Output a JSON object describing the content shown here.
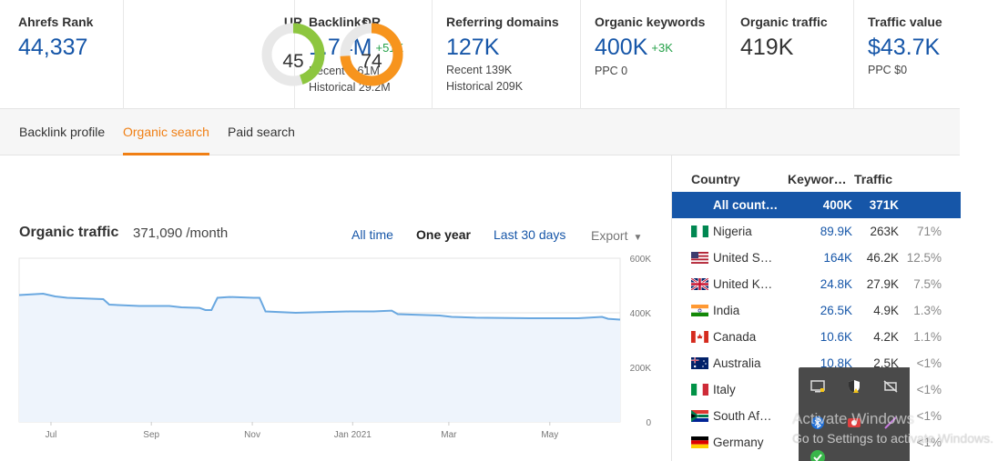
{
  "metrics": {
    "ahrefs_rank": {
      "label": "Ahrefs Rank",
      "value": "44,337"
    },
    "ur": {
      "label": "UR",
      "value": "45",
      "score": 45,
      "color": "#8dc63f"
    },
    "dr": {
      "label": "DR",
      "value": "74",
      "score": 74,
      "color": "#f7941d"
    },
    "backlinks": {
      "label": "Backlinks",
      "value": "1.74M",
      "delta": "+51K",
      "recent": "Recent 2.61M",
      "historical": "Historical 29.2M"
    },
    "referring_domains": {
      "label": "Referring domains",
      "value": "127K",
      "recent": "Recent 139K",
      "historical": "Historical 209K"
    },
    "organic_keywords": {
      "label": "Organic keywords",
      "value": "400K",
      "delta": "+3K",
      "ppc": "PPC 0"
    },
    "organic_traffic": {
      "label": "Organic traffic",
      "value": "419K"
    },
    "traffic_value": {
      "label": "Traffic value",
      "value": "$43.7K",
      "ppc": "PPC $0"
    }
  },
  "tabs": [
    {
      "label": "Backlink profile",
      "active": false
    },
    {
      "label": "Organic search",
      "active": true
    },
    {
      "label": "Paid search",
      "active": false
    }
  ],
  "chart_panel": {
    "title": "Organic traffic",
    "subtitle": "371,090 /month",
    "ranges": [
      "All time",
      "One year",
      "Last 30 days"
    ],
    "selected_range": "One year",
    "export_label": "Export"
  },
  "chart_data": {
    "type": "area",
    "title": "Organic traffic",
    "xlabel": "",
    "ylabel": "",
    "x_ticks": [
      "Jul",
      "Sep",
      "Nov",
      "Jan 2021",
      "Mar",
      "May"
    ],
    "y_ticks": [
      "600K",
      "400K",
      "200K",
      "0"
    ],
    "ylim": [
      0,
      600000
    ],
    "grid": true,
    "series": [
      {
        "values": [
          [
            0,
            465000
          ],
          [
            0.04,
            470000
          ],
          [
            0.06,
            460000
          ],
          [
            0.08,
            455000
          ],
          [
            0.14,
            450000
          ],
          [
            0.15,
            430000
          ],
          [
            0.2,
            425000
          ],
          [
            0.25,
            425000
          ],
          [
            0.27,
            420000
          ],
          [
            0.3,
            418000
          ],
          [
            0.32,
            410000
          ],
          [
            0.31,
            410000
          ],
          [
            0.33,
            455000
          ],
          [
            0.35,
            458000
          ],
          [
            0.39,
            455000
          ],
          [
            0.4,
            455000
          ],
          [
            0.41,
            405000
          ],
          [
            0.46,
            400000
          ],
          [
            0.55,
            405000
          ],
          [
            0.59,
            405000
          ],
          [
            0.62,
            408000
          ],
          [
            0.63,
            395000
          ],
          [
            0.7,
            390000
          ],
          [
            0.72,
            385000
          ],
          [
            0.76,
            382000
          ],
          [
            0.85,
            380000
          ],
          [
            0.93,
            380000
          ],
          [
            0.97,
            385000
          ],
          [
            0.98,
            378000
          ],
          [
            1.0,
            375000
          ]
        ],
        "color": "#6aa8e0"
      }
    ]
  },
  "country_table": {
    "headers": {
      "country": "Country",
      "keywords": "Keywor…",
      "traffic": "Traffic"
    },
    "rows": [
      {
        "name": "All count…",
        "keywords": "400K",
        "traffic": "371K",
        "pct": "",
        "flag": "none",
        "selected": true
      },
      {
        "name": "Nigeria",
        "keywords": "89.9K",
        "traffic": "263K",
        "pct": "71%",
        "flag": "ng"
      },
      {
        "name": "United S…",
        "keywords": "164K",
        "traffic": "46.2K",
        "pct": "12.5%",
        "flag": "us"
      },
      {
        "name": "United K…",
        "keywords": "24.8K",
        "traffic": "27.9K",
        "pct": "7.5%",
        "flag": "gb"
      },
      {
        "name": "India",
        "keywords": "26.5K",
        "traffic": "4.9K",
        "pct": "1.3%",
        "flag": "in"
      },
      {
        "name": "Canada",
        "keywords": "10.6K",
        "traffic": "4.2K",
        "pct": "1.1%",
        "flag": "ca"
      },
      {
        "name": "Australia",
        "keywords": "10.8K",
        "traffic": "2.5K",
        "pct": "<1%",
        "flag": "au"
      },
      {
        "name": "Italy",
        "keywords": "",
        "traffic": "",
        "pct": "<1%",
        "flag": "it"
      },
      {
        "name": "South Af…",
        "keywords": "",
        "traffic": "",
        "pct": "<1%",
        "flag": "za"
      },
      {
        "name": "Germany",
        "keywords": "",
        "traffic": "",
        "pct": "<1%",
        "flag": "de"
      }
    ]
  },
  "tray_icons": [
    "monitor-icon",
    "security-shield-icon",
    "network-off-icon",
    "bluetooth-icon",
    "record-icon",
    "pen-icon",
    "check-icon"
  ],
  "watermark": {
    "line1": "Activate Windows",
    "line2": "Go to Settings to activate Windows."
  }
}
